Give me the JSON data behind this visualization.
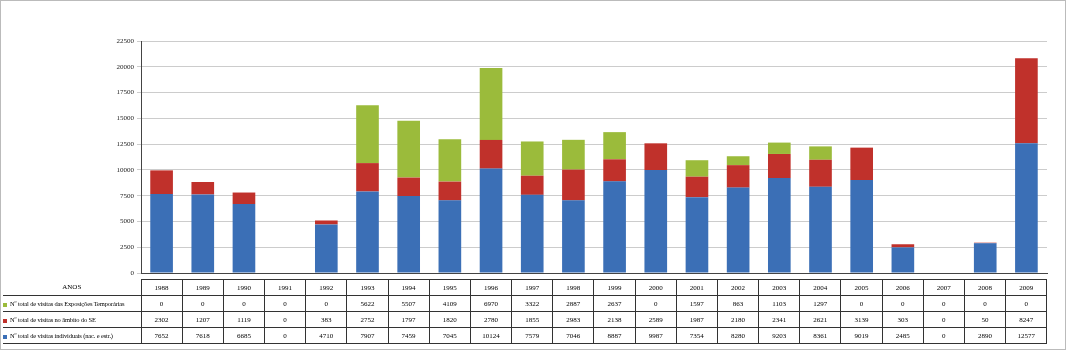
{
  "chart_data": {
    "type": "bar",
    "stacked": true,
    "annotations": [
      "ANOS"
    ],
    "categories": [
      "1988",
      "1989",
      "1990",
      "1991",
      "1992",
      "1993",
      "1994",
      "1995",
      "1996",
      "1997",
      "1998",
      "1999",
      "2000",
      "2001",
      "2002",
      "2003",
      "2004",
      "2005",
      "2006",
      "2007",
      "2008",
      "2009"
    ],
    "series": [
      {
        "name": "Nº total de visitas individuais (nac. e estr.)",
        "color": "#3b6fb6",
        "values": [
          7652,
          7618,
          6685,
          0,
          4710,
          7907,
          7459,
          7045,
          10124,
          7579,
          7046,
          8887,
          9987,
          7354,
          8280,
          9203,
          8361,
          9019,
          2485,
          0,
          2890,
          12577
        ]
      },
      {
        "name": "Nº total de visitas no âmbito do SE",
        "color": "#c0312b",
        "values": [
          2302,
          1207,
          1119,
          0,
          383,
          2752,
          1797,
          1820,
          2780,
          1855,
          2983,
          2138,
          2589,
          1987,
          2180,
          2341,
          2621,
          3139,
          303,
          0,
          50,
          8247
        ]
      },
      {
        "name": "Nº total de visitas das Exposições Temporárias",
        "color": "#9bbb3b",
        "values": [
          0,
          0,
          0,
          0,
          0,
          5622,
          5507,
          4109,
          6970,
          3322,
          2887,
          2637,
          0,
          1597,
          863,
          1103,
          1297,
          0,
          0,
          0,
          0,
          0
        ]
      }
    ],
    "ylim": [
      0,
      22500
    ],
    "yticks": [
      0,
      2500,
      5000,
      7500,
      10000,
      12500,
      15000,
      17500,
      20000,
      22500
    ],
    "grid": "y",
    "legend": "bottom",
    "data_labels": true
  }
}
